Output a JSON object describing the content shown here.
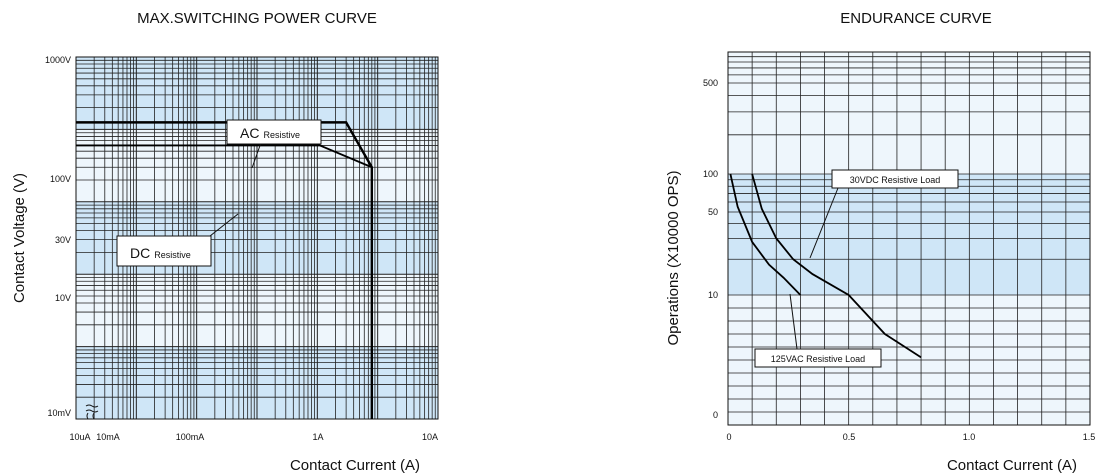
{
  "chart_data": [
    {
      "type": "line",
      "title": "MAX.SWITCHING POWER CURVE",
      "xlabel": "Contact Current (A)",
      "ylabel": "Contact Voltage (V)",
      "x_scale": "log",
      "y_scale": "log",
      "xlim": [
        "10uA",
        "10A"
      ],
      "ylim": [
        "10mV",
        "1000V"
      ],
      "x_ticks": [
        "10uA",
        "10mA",
        "100mA",
        "1A",
        "10A"
      ],
      "y_ticks": [
        "10mV",
        "10V",
        "30V",
        "100V",
        "1000V"
      ],
      "grid": true,
      "series": [
        {
          "name": "AC Resistive",
          "x": [
            "10uA",
            "300mA",
            "800mA",
            "800mA"
          ],
          "y": [
            125,
            125,
            30,
            0.01
          ]
        },
        {
          "name": "DC Resistive",
          "x": [
            "10uA",
            "110mA",
            "800mA"
          ],
          "y": [
            60,
            60,
            30
          ]
        }
      ],
      "annotations": [
        {
          "label": "AC",
          "sub": "Resistive"
        },
        {
          "label": "DC",
          "sub": "Resistive"
        }
      ]
    },
    {
      "type": "line",
      "title": "ENDURANCE CURVE",
      "xlabel": "Contact Current (A)",
      "ylabel": "Operations (X10000 OPS)",
      "x_ticks": [
        "0",
        "0.5",
        "1.0",
        "1.5"
      ],
      "y_ticks": [
        "0",
        "10",
        "50",
        "100",
        "500"
      ],
      "xlim": [
        0,
        1.5
      ],
      "ylim": [
        0,
        1000
      ],
      "grid": true,
      "series": [
        {
          "name": "30VDC Resistive Load",
          "x": [
            0.1,
            0.14,
            0.2,
            0.27,
            0.35,
            0.5,
            0.65,
            0.8
          ],
          "y": [
            100,
            53,
            30,
            20,
            15,
            10,
            7,
            5.2
          ]
        },
        {
          "name": "125VAC Resistive Load",
          "x": [
            0.01,
            0.04,
            0.1,
            0.17,
            0.23,
            0.3
          ],
          "y": [
            100,
            55,
            28,
            18,
            14,
            10
          ]
        }
      ]
    }
  ]
}
